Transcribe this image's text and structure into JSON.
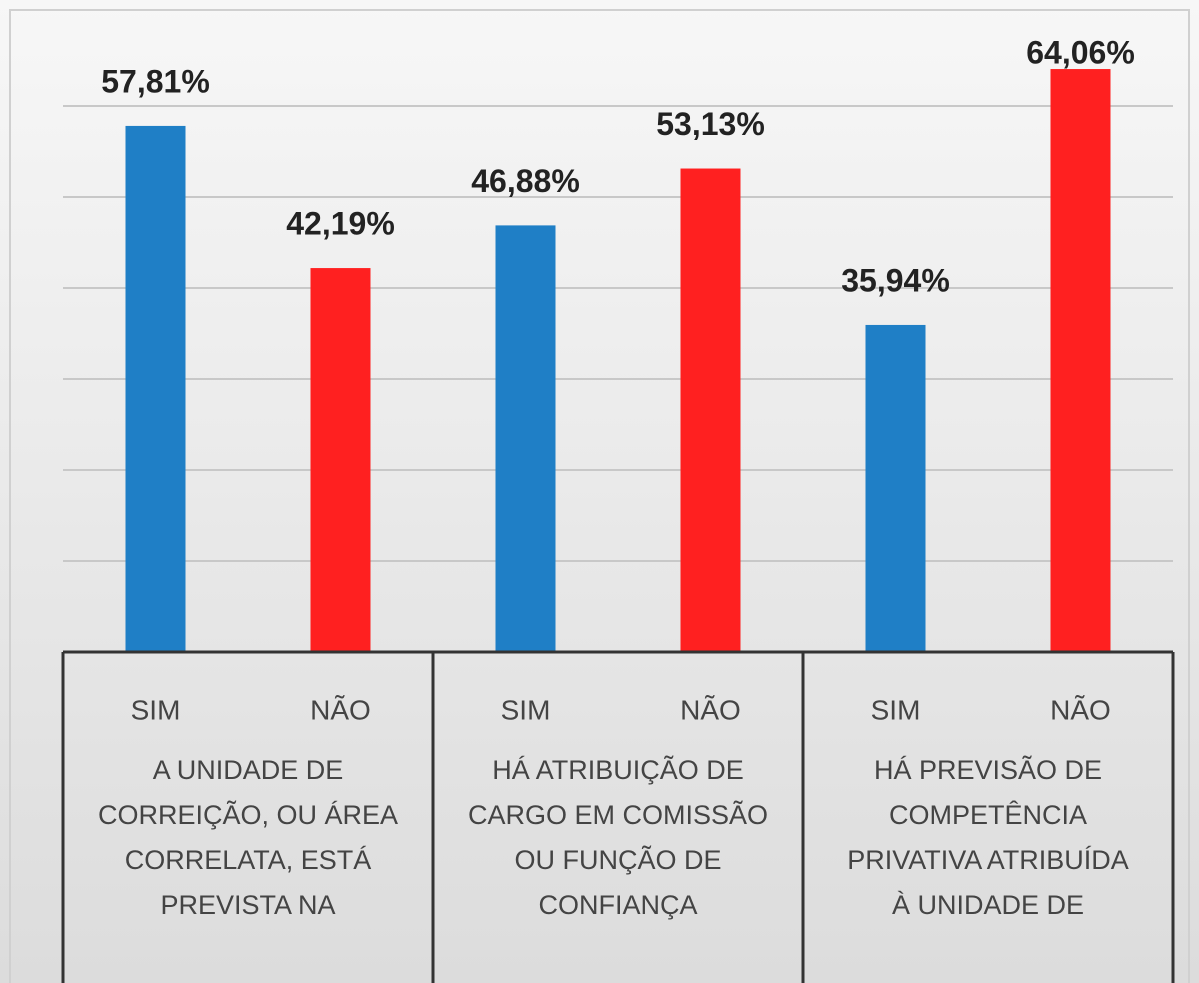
{
  "chart_data": {
    "type": "bar",
    "categories": [
      "SIM",
      "NÃO",
      "SIM",
      "NÃO",
      "SIM",
      "NÃO"
    ],
    "values": [
      57.81,
      42.19,
      46.88,
      53.13,
      35.94,
      64.06
    ],
    "value_labels": [
      "57,81%",
      "42,19%",
      "46,88%",
      "53,13%",
      "35,94%",
      "64,06%"
    ],
    "colors": [
      "#1f7fc6",
      "#ff2020",
      "#1f7fc6",
      "#ff2020",
      "#1f7fc6",
      "#ff2020"
    ],
    "groups": [
      {
        "lines": [
          "A UNIDADE DE",
          "CORREIÇÃO, OU ÁREA",
          "CORRELATA, ESTÁ",
          "PREVISTA NA"
        ]
      },
      {
        "lines": [
          "HÁ ATRIBUIÇÃO DE",
          "CARGO EM COMISSÃO",
          "OU FUNÇÃO DE",
          "CONFIANÇA"
        ]
      },
      {
        "lines": [
          "HÁ PREVISÃO DE",
          "COMPETÊNCIA",
          "PRIVATIVA ATRIBUÍDA",
          "À UNIDADE DE"
        ]
      }
    ],
    "ylim": [
      0,
      70
    ],
    "yticks": [
      10,
      20,
      30,
      40,
      50,
      60
    ],
    "grid": true
  }
}
